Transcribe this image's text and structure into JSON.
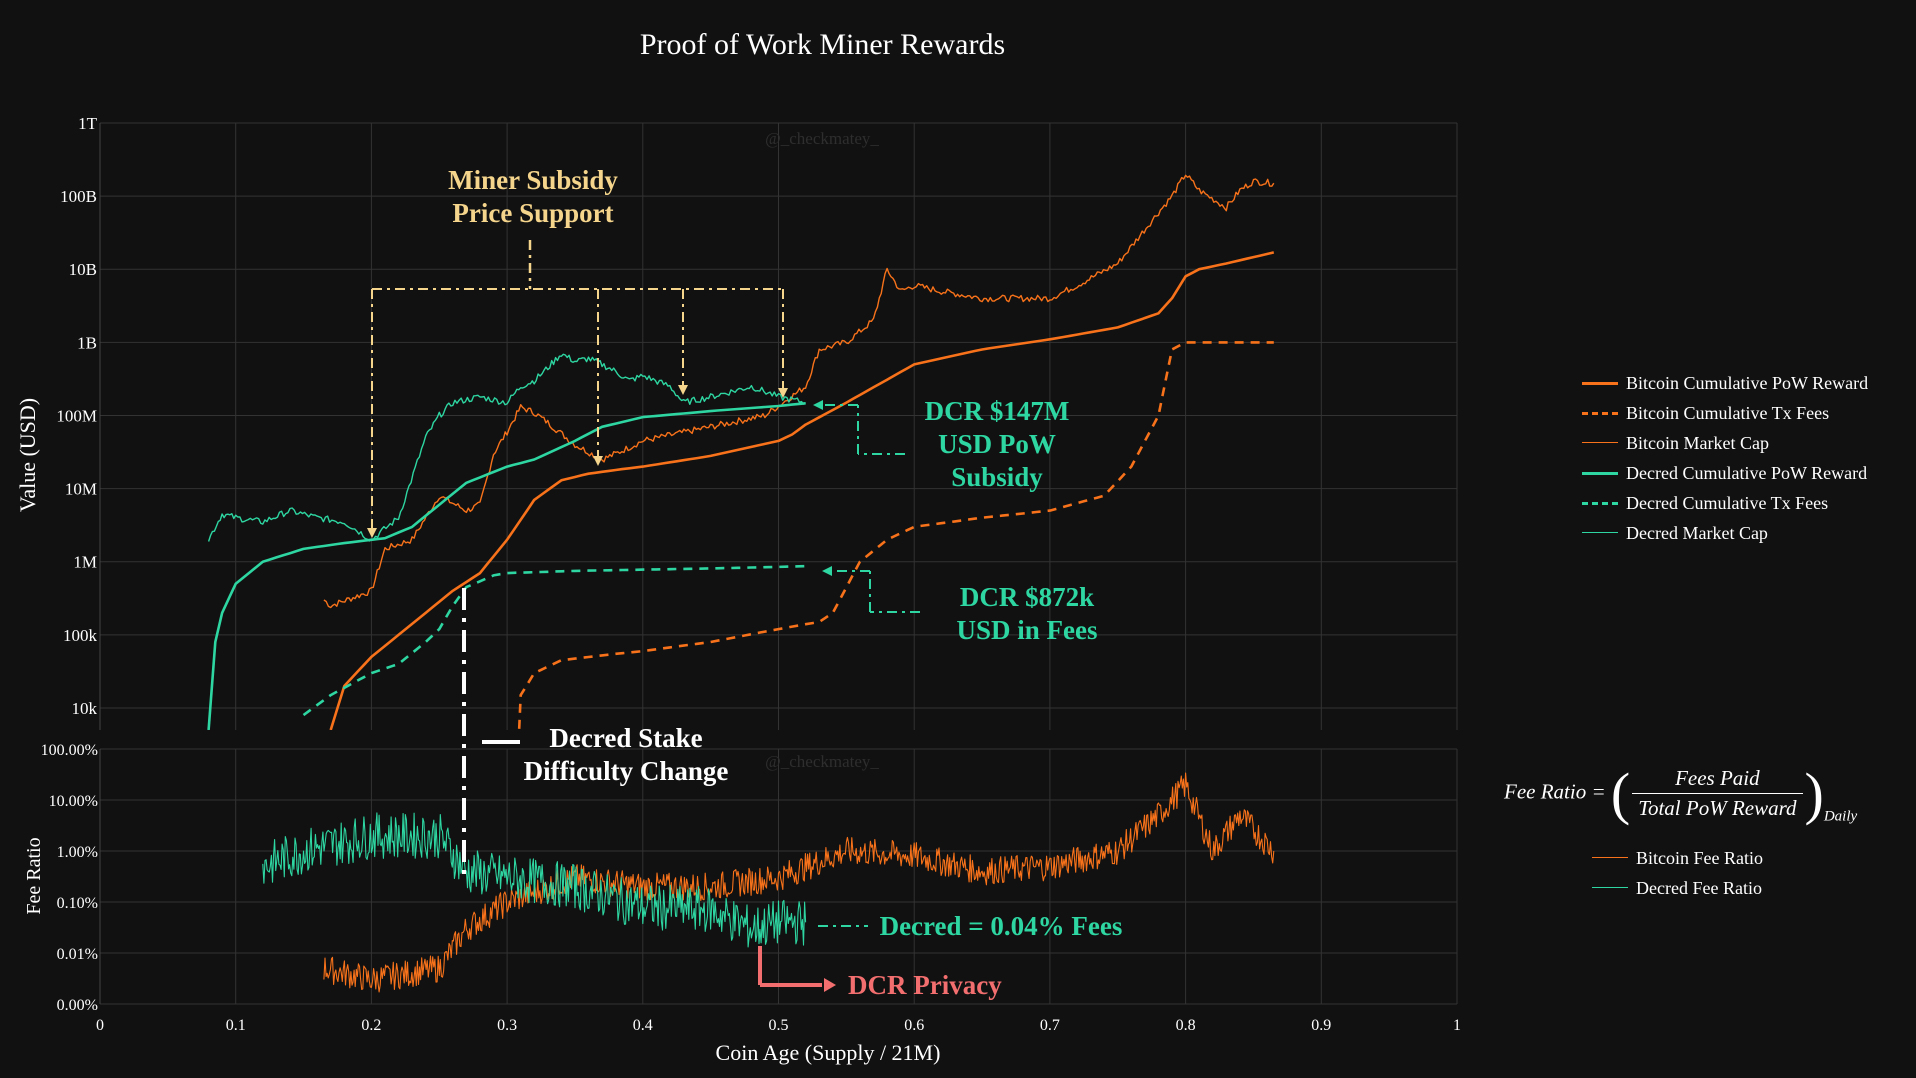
{
  "title": "Proof of Work Miner Rewards",
  "watermark": "@_checkmatey_",
  "colors": {
    "background": "#111111",
    "grid": "#333333",
    "bitcoin": "#f7721a",
    "decred": "#2ed6a1",
    "gold_annotation": "#f5d58c",
    "privacy": "#f36f6f"
  },
  "legend_top": [
    {
      "label": "Bitcoin Cumulative PoW Reward",
      "color": "#f7721a",
      "dash": "solid",
      "width": 3
    },
    {
      "label": "Bitcoin Cumulative Tx Fees",
      "color": "#f7721a",
      "dash": "dash",
      "width": 3
    },
    {
      "label": "Bitcoin Market Cap",
      "color": "#f7721a",
      "dash": "solid",
      "width": 1.5
    },
    {
      "label": "Decred Cumulative PoW Reward",
      "color": "#2ed6a1",
      "dash": "solid",
      "width": 3
    },
    {
      "label": "Decred Cumulative Tx Fees",
      "color": "#2ed6a1",
      "dash": "dash",
      "width": 3
    },
    {
      "label": "Decred Market Cap",
      "color": "#2ed6a1",
      "dash": "solid",
      "width": 1.5
    }
  ],
  "legend_bottom": [
    {
      "label": "Bitcoin Fee Ratio",
      "color": "#f7721a"
    },
    {
      "label": "Decred Fee Ratio",
      "color": "#2ed6a1"
    }
  ],
  "formula": {
    "lhs": "Fee Ratio =",
    "numerator": "Fees Paid",
    "denominator": "Total PoW Reward",
    "subscript": "Daily"
  },
  "chart_data": [
    {
      "type": "line",
      "xlabel": "",
      "ylabel": "Value (USD)",
      "yscale": "log",
      "xlim": [
        0,
        1
      ],
      "ylim": [
        5000,
        1000000000000
      ],
      "ytick_values": [
        10000,
        100000,
        1000000,
        10000000,
        100000000,
        1000000000,
        10000000000,
        100000000000,
        1000000000000
      ],
      "ytick_labels": [
        "10k",
        "100k",
        "1M",
        "10M",
        "100M",
        "1B",
        "10B",
        "100B",
        "1T"
      ],
      "series": [
        {
          "name": "Bitcoin Cumulative PoW Reward",
          "style": "solid",
          "color": "#f7721a",
          "x": [
            0.17,
            0.18,
            0.2,
            0.22,
            0.24,
            0.26,
            0.28,
            0.3,
            0.32,
            0.34,
            0.36,
            0.38,
            0.4,
            0.45,
            0.5,
            0.51,
            0.52,
            0.55,
            0.6,
            0.65,
            0.7,
            0.75,
            0.78,
            0.79,
            0.8,
            0.81,
            0.83,
            0.865
          ],
          "y": [
            5000,
            20000,
            50000,
            100000,
            200000,
            400000,
            700000,
            2000000,
            7000000,
            13000000,
            16000000,
            18000000,
            20000000,
            28000000,
            45000000,
            55000000,
            75000000,
            150000000,
            500000000,
            800000000,
            1100000000,
            1600000000,
            2500000000,
            4000000000,
            8000000000,
            10000000000,
            12000000000,
            17000000000
          ]
        },
        {
          "name": "Bitcoin Cumulative Tx Fees",
          "style": "dash",
          "color": "#f7721a",
          "x": [
            0.3,
            0.31,
            0.32,
            0.34,
            0.38,
            0.4,
            0.45,
            0.5,
            0.52,
            0.53,
            0.54,
            0.56,
            0.58,
            0.6,
            0.65,
            0.7,
            0.74,
            0.76,
            0.78,
            0.79,
            0.8,
            0.82,
            0.865
          ],
          "y": [
            1,
            15000,
            30000,
            45000,
            55000,
            60000,
            80000,
            120000,
            140000,
            150000,
            200000,
            1000000,
            2000000,
            3000000,
            4000000,
            5000000,
            8000000,
            20000000,
            100000000,
            800000000,
            1000000000,
            1000000000,
            1000000000
          ]
        },
        {
          "name": "Bitcoin Market Cap",
          "style": "solid",
          "color": "#f7721a",
          "x": [
            0.165,
            0.17,
            0.2,
            0.21,
            0.23,
            0.25,
            0.27,
            0.28,
            0.29,
            0.3,
            0.31,
            0.32,
            0.33,
            0.35,
            0.37,
            0.38,
            0.4,
            0.45,
            0.49,
            0.52,
            0.53,
            0.55,
            0.57,
            0.58,
            0.59,
            0.6,
            0.62,
            0.65,
            0.7,
            0.72,
            0.75,
            0.78,
            0.79,
            0.8,
            0.81,
            0.83,
            0.84,
            0.85,
            0.865
          ],
          "y": [
            300000,
            250000,
            400000,
            1500000,
            2000000,
            8000000,
            5000000,
            6000000,
            30000000,
            60000000,
            130000000,
            110000000,
            80000000,
            40000000,
            25000000,
            30000000,
            45000000,
            70000000,
            100000000,
            250000000,
            800000000,
            1000000000,
            2000000000,
            10000000000,
            5000000000,
            6000000000,
            5000000000,
            4000000000,
            4000000000,
            6000000000,
            12000000000,
            60000000000,
            100000000000,
            200000000000,
            120000000000,
            70000000000,
            120000000000,
            160000000000,
            150000000000
          ]
        },
        {
          "name": "Decred Cumulative PoW Reward",
          "style": "solid",
          "color": "#2ed6a1",
          "x": [
            0.08,
            0.085,
            0.09,
            0.1,
            0.12,
            0.15,
            0.18,
            0.21,
            0.23,
            0.25,
            0.27,
            0.3,
            0.32,
            0.35,
            0.37,
            0.4,
            0.45,
            0.5,
            0.52
          ],
          "y": [
            5000,
            80000,
            200000,
            500000,
            1000000,
            1500000,
            1800000,
            2100000,
            3000000,
            6000000,
            12000000,
            20000000,
            25000000,
            45000000,
            70000000,
            95000000,
            115000000,
            135000000,
            147000000
          ]
        },
        {
          "name": "Decred Cumulative Tx Fees",
          "style": "dash",
          "color": "#2ed6a1",
          "x": [
            0.15,
            0.17,
            0.2,
            0.22,
            0.24,
            0.25,
            0.26,
            0.27,
            0.29,
            0.3,
            0.35,
            0.4,
            0.45,
            0.5,
            0.52
          ],
          "y": [
            8000,
            15000,
            30000,
            40000,
            80000,
            120000,
            250000,
            450000,
            650000,
            700000,
            750000,
            780000,
            810000,
            850000,
            872000
          ]
        },
        {
          "name": "Decred Market Cap",
          "style": "solid",
          "color": "#2ed6a1",
          "x": [
            0.08,
            0.09,
            0.1,
            0.12,
            0.14,
            0.16,
            0.18,
            0.2,
            0.22,
            0.24,
            0.25,
            0.26,
            0.28,
            0.3,
            0.31,
            0.32,
            0.33,
            0.34,
            0.35,
            0.36,
            0.37,
            0.38,
            0.39,
            0.4,
            0.42,
            0.43,
            0.45,
            0.48,
            0.5,
            0.52
          ],
          "y": [
            2000000,
            4500000,
            4000000,
            3500000,
            5000000,
            4000000,
            3500000,
            2000000,
            4000000,
            50000000,
            100000000,
            150000000,
            180000000,
            150000000,
            250000000,
            300000000,
            450000000,
            700000000,
            550000000,
            600000000,
            500000000,
            400000000,
            300000000,
            350000000,
            250000000,
            150000000,
            180000000,
            250000000,
            180000000,
            150000000
          ]
        }
      ],
      "annotations": [
        {
          "text": "Miner Subsidy\nPrice Support",
          "color": "#f5d58c"
        },
        {
          "text": "DCR $147M\nUSD PoW\nSubsidy",
          "color": "#2ed6a1"
        },
        {
          "text": "DCR $872k\nUSD in Fees",
          "color": "#2ed6a1"
        },
        {
          "text": "Decred Stake\nDifficulty Change",
          "color": "#ffffff"
        }
      ]
    },
    {
      "type": "line",
      "xlabel": "Coin Age (Supply / 21M)",
      "ylabel": "Fee Ratio",
      "yscale": "log",
      "xlim": [
        0,
        1
      ],
      "ylim": [
        1e-05,
        1
      ],
      "xticks": [
        0,
        0.1,
        0.2,
        0.3,
        0.4,
        0.5,
        0.6,
        0.7,
        0.8,
        0.9,
        1
      ],
      "xtick_labels": [
        "0",
        "0.1",
        "0.2",
        "0.3",
        "0.4",
        "0.5",
        "0.6",
        "0.7",
        "0.8",
        "0.9",
        "1"
      ],
      "ytick_values": [
        1e-05,
        0.0001,
        0.001,
        0.01,
        0.1,
        1
      ],
      "ytick_labels": [
        "0.00%",
        "0.01%",
        "0.10%",
        "1.00%",
        "10.00%",
        "100.00%"
      ],
      "series": [
        {
          "name": "Bitcoin Fee Ratio",
          "color": "#f7721a",
          "x": [
            0.165,
            0.2,
            0.25,
            0.27,
            0.3,
            0.35,
            0.4,
            0.45,
            0.5,
            0.55,
            0.6,
            0.65,
            0.7,
            0.75,
            0.78,
            0.8,
            0.82,
            0.84,
            0.865
          ],
          "y": [
            5e-05,
            3e-05,
            5e-05,
            0.0003,
            0.001,
            0.003,
            0.002,
            0.002,
            0.003,
            0.01,
            0.008,
            0.004,
            0.005,
            0.01,
            0.05,
            0.2,
            0.01,
            0.05,
            0.01
          ]
        },
        {
          "name": "Decred Fee Ratio",
          "color": "#2ed6a1",
          "x": [
            0.12,
            0.15,
            0.2,
            0.25,
            0.27,
            0.3,
            0.35,
            0.4,
            0.45,
            0.48,
            0.5,
            0.52
          ],
          "y": [
            0.005,
            0.01,
            0.02,
            0.02,
            0.004,
            0.003,
            0.002,
            0.0008,
            0.0007,
            0.0003,
            0.0004,
            0.0004
          ]
        }
      ],
      "annotations": [
        {
          "text": "Decred = 0.04% Fees",
          "color": "#2ed6a1"
        },
        {
          "text": "DCR Privacy",
          "color": "#f36f6f"
        }
      ]
    }
  ]
}
